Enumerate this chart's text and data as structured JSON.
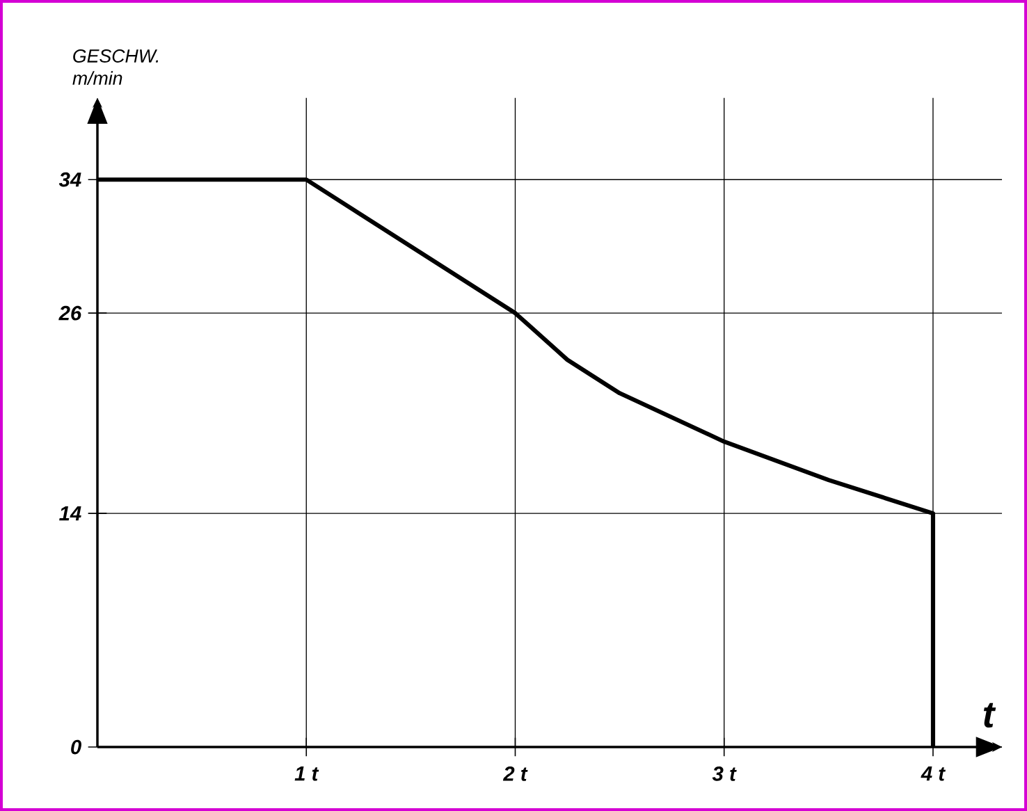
{
  "chart_data": {
    "type": "line",
    "ylabel": "GESCHW. m/min",
    "xlabel": "t",
    "series": [
      {
        "color": "#000000",
        "x": [
          0,
          1,
          2,
          2.25,
          2.5,
          3,
          3.5,
          4,
          4
        ],
        "values": [
          34,
          34,
          26,
          23.2,
          21.2,
          18.3,
          16,
          14,
          0
        ]
      }
    ],
    "xlim": [
      0,
      4.33
    ],
    "ylim": [
      0,
      38.9
    ],
    "xticks": [
      {
        "value": 1,
        "label": "1 t"
      },
      {
        "value": 2,
        "label": "2 t"
      },
      {
        "value": 3,
        "label": "3 t"
      },
      {
        "value": 4,
        "label": "4 t"
      }
    ],
    "yticks": [
      0,
      14,
      26,
      34
    ],
    "grid": true,
    "marker": "none",
    "line_style": "solid"
  }
}
